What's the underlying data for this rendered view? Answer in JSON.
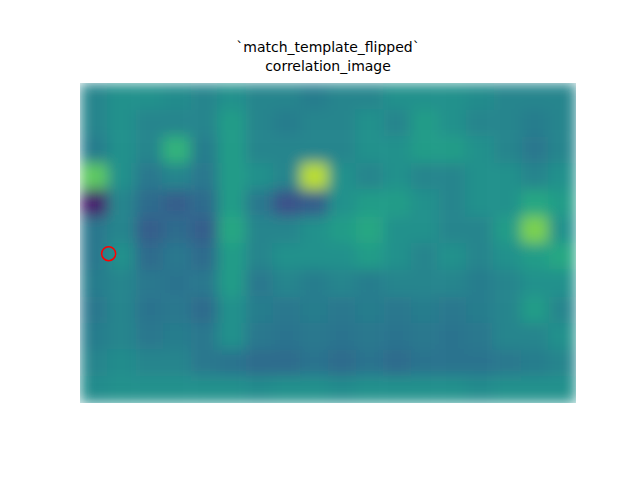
{
  "chart_data": {
    "type": "heatmap",
    "title": "`match_template_flipped`",
    "subtitle": "correlation_image",
    "xlim": [
      0,
      18
    ],
    "ylim": [
      12,
      0
    ],
    "tick_labels": false,
    "color_range": [
      0,
      1
    ],
    "cells": [
      [
        0.45,
        0.5,
        0.5,
        0.48,
        0.45,
        0.5,
        0.45,
        0.45,
        0.42,
        0.45,
        0.45,
        0.5,
        0.5,
        0.5,
        0.48,
        0.45,
        0.45,
        0.45
      ],
      [
        0.45,
        0.5,
        0.45,
        0.45,
        0.45,
        0.55,
        0.45,
        0.42,
        0.45,
        0.45,
        0.5,
        0.45,
        0.55,
        0.5,
        0.45,
        0.45,
        0.42,
        0.45
      ],
      [
        0.42,
        0.5,
        0.45,
        0.65,
        0.42,
        0.55,
        0.45,
        0.45,
        0.45,
        0.45,
        0.5,
        0.5,
        0.55,
        0.55,
        0.5,
        0.45,
        0.4,
        0.45
      ],
      [
        0.75,
        0.5,
        0.4,
        0.45,
        0.4,
        0.55,
        0.5,
        0.45,
        0.9,
        0.5,
        0.45,
        0.5,
        0.45,
        0.45,
        0.5,
        0.5,
        0.45,
        0.5
      ],
      [
        0.1,
        0.45,
        0.35,
        0.3,
        0.35,
        0.55,
        0.4,
        0.25,
        0.3,
        0.5,
        0.55,
        0.55,
        0.5,
        0.45,
        0.5,
        0.5,
        0.6,
        0.55
      ],
      [
        0.4,
        0.45,
        0.3,
        0.35,
        0.3,
        0.6,
        0.45,
        0.45,
        0.5,
        0.55,
        0.6,
        0.5,
        0.5,
        0.45,
        0.45,
        0.55,
        0.8,
        0.5
      ],
      [
        0.4,
        0.5,
        0.35,
        0.4,
        0.35,
        0.55,
        0.45,
        0.5,
        0.5,
        0.5,
        0.55,
        0.5,
        0.45,
        0.5,
        0.45,
        0.5,
        0.55,
        0.6
      ],
      [
        0.42,
        0.45,
        0.4,
        0.38,
        0.4,
        0.55,
        0.4,
        0.45,
        0.42,
        0.45,
        0.42,
        0.45,
        0.45,
        0.45,
        0.42,
        0.45,
        0.5,
        0.5
      ],
      [
        0.4,
        0.45,
        0.38,
        0.4,
        0.35,
        0.5,
        0.42,
        0.4,
        0.42,
        0.4,
        0.42,
        0.4,
        0.42,
        0.4,
        0.42,
        0.45,
        0.55,
        0.45
      ],
      [
        0.42,
        0.45,
        0.4,
        0.42,
        0.4,
        0.5,
        0.4,
        0.38,
        0.4,
        0.38,
        0.4,
        0.38,
        0.4,
        0.38,
        0.4,
        0.45,
        0.45,
        0.5
      ],
      [
        0.45,
        0.48,
        0.45,
        0.45,
        0.4,
        0.38,
        0.35,
        0.35,
        0.38,
        0.35,
        0.38,
        0.35,
        0.38,
        0.38,
        0.38,
        0.4,
        0.42,
        0.45
      ],
      [
        0.48,
        0.5,
        0.5,
        0.5,
        0.5,
        0.5,
        0.48,
        0.5,
        0.5,
        0.48,
        0.5,
        0.5,
        0.5,
        0.5,
        0.48,
        0.5,
        0.5,
        0.5
      ]
    ],
    "series": [
      {
        "type": "scatter",
        "marker": "circle",
        "color": "red",
        "x": [
          1.04
        ],
        "values": [
          6.4
        ]
      }
    ]
  }
}
